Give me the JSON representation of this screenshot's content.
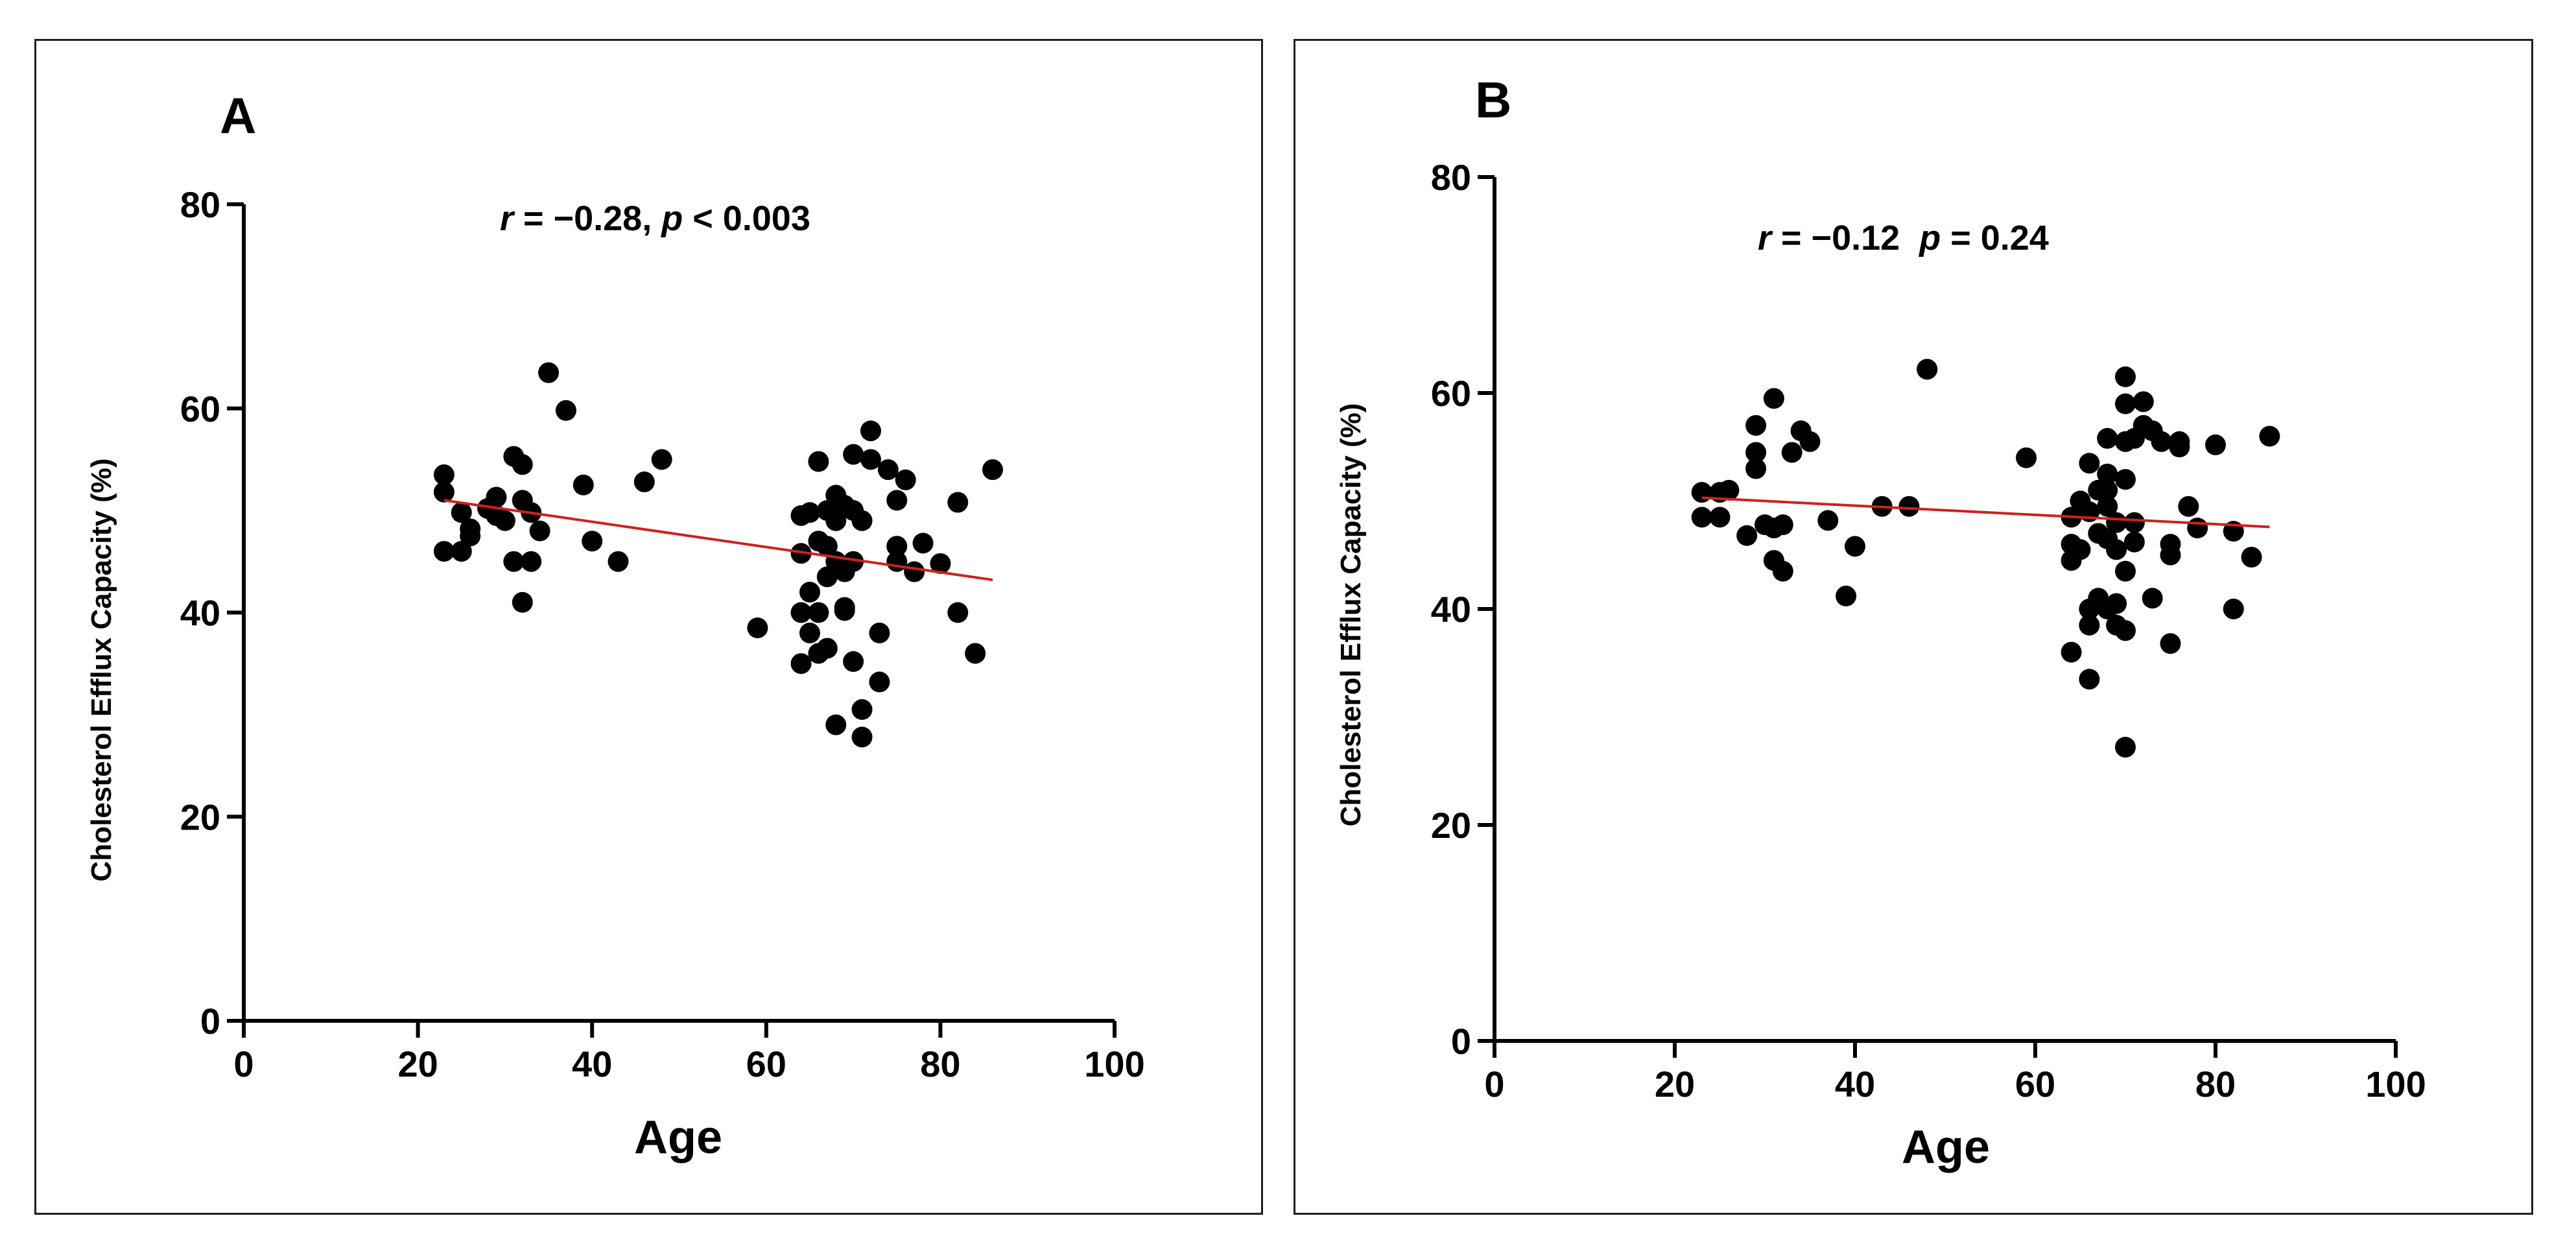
{
  "colors": {
    "points": "#000000",
    "fit_line": "#cc2222",
    "axis": "#000000",
    "frame": "#1f1f1f"
  },
  "chart_data": [
    {
      "type": "scatter",
      "panel": "A",
      "annotation": {
        "r_symbol": "r",
        "r_text": " = −0.28, ",
        "p_symbol": "p",
        "p_text": " < 0.003"
      },
      "xlabel": "Age",
      "ylabel": "Cholesterol Efflux Capacity (%)",
      "xlim": [
        0,
        100
      ],
      "ylim": [
        0,
        80
      ],
      "xticks": [
        0,
        20,
        40,
        60,
        80,
        100
      ],
      "yticks": [
        0,
        20,
        40,
        60,
        80
      ],
      "trendline": {
        "x": [
          23,
          86
        ],
        "y": [
          51.0,
          43.2
        ]
      },
      "points": [
        [
          23,
          53.5
        ],
        [
          23,
          51.8
        ],
        [
          23,
          46.0
        ],
        [
          25,
          49.8
        ],
        [
          25,
          46.0
        ],
        [
          26,
          47.5
        ],
        [
          26,
          48.2
        ],
        [
          28,
          50.2
        ],
        [
          29,
          51.3
        ],
        [
          29,
          49.5
        ],
        [
          30,
          49.0
        ],
        [
          31,
          55.3
        ],
        [
          31,
          45.0
        ],
        [
          32,
          54.5
        ],
        [
          32,
          51.0
        ],
        [
          32,
          41.0
        ],
        [
          33,
          45.0
        ],
        [
          33,
          49.8
        ],
        [
          34,
          48.0
        ],
        [
          35,
          63.5
        ],
        [
          37,
          59.8
        ],
        [
          39,
          52.5
        ],
        [
          40,
          47.0
        ],
        [
          43,
          45.0
        ],
        [
          46,
          52.8
        ],
        [
          48,
          55.0
        ],
        [
          59,
          38.5
        ],
        [
          64,
          49.5
        ],
        [
          64,
          45.8
        ],
        [
          64,
          40.0
        ],
        [
          64,
          35.0
        ],
        [
          65,
          49.8
        ],
        [
          65,
          42.0
        ],
        [
          65,
          38.0
        ],
        [
          66,
          54.8
        ],
        [
          66,
          47.0
        ],
        [
          66,
          40.0
        ],
        [
          66,
          36.0
        ],
        [
          67,
          50.0
        ],
        [
          67,
          46.5
        ],
        [
          67,
          43.5
        ],
        [
          67,
          36.5
        ],
        [
          68,
          51.5
        ],
        [
          68,
          49.0
        ],
        [
          68,
          45.0
        ],
        [
          68,
          29.0
        ],
        [
          69,
          50.5
        ],
        [
          69,
          44.0
        ],
        [
          69,
          40.2
        ],
        [
          69,
          40.5
        ],
        [
          70,
          55.5
        ],
        [
          70,
          50.0
        ],
        [
          70,
          45.0
        ],
        [
          70,
          35.2
        ],
        [
          71,
          49.0
        ],
        [
          71,
          30.5
        ],
        [
          71,
          27.8
        ],
        [
          72,
          57.8
        ],
        [
          72,
          55.0
        ],
        [
          73,
          38.0
        ],
        [
          73,
          33.2
        ],
        [
          74,
          54.0
        ],
        [
          75,
          51.0
        ],
        [
          75,
          46.5
        ],
        [
          75,
          45.0
        ],
        [
          76,
          53.0
        ],
        [
          77,
          44.0
        ],
        [
          78,
          46.8
        ],
        [
          80,
          44.8
        ],
        [
          82,
          50.8
        ],
        [
          82,
          40.0
        ],
        [
          84,
          36.0
        ],
        [
          86,
          54.0
        ]
      ]
    },
    {
      "type": "scatter",
      "panel": "B",
      "annotation": {
        "r_symbol": "r",
        "r_text": " = −0.12  ",
        "p_symbol": "p",
        "p_text": " = 0.24"
      },
      "xlabel": "Age",
      "ylabel": "Cholesterol Efflux Capacity (%)",
      "xlim": [
        0,
        100
      ],
      "ylim": [
        0,
        80
      ],
      "xticks": [
        0,
        20,
        40,
        60,
        80,
        100
      ],
      "yticks": [
        0,
        20,
        40,
        60,
        80
      ],
      "trendline": {
        "x": [
          23,
          86
        ],
        "y": [
          50.3,
          47.6
        ]
      },
      "points": [
        [
          23,
          50.8
        ],
        [
          23,
          48.5
        ],
        [
          25,
          50.8
        ],
        [
          25,
          48.5
        ],
        [
          26,
          51.0
        ],
        [
          28,
          46.8
        ],
        [
          29,
          57.0
        ],
        [
          29,
          54.5
        ],
        [
          29,
          53.0
        ],
        [
          30,
          47.8
        ],
        [
          31,
          59.5
        ],
        [
          31,
          47.5
        ],
        [
          31,
          44.5
        ],
        [
          32,
          47.8
        ],
        [
          32,
          43.5
        ],
        [
          33,
          54.5
        ],
        [
          34,
          56.5
        ],
        [
          35,
          55.5
        ],
        [
          37,
          48.2
        ],
        [
          39,
          41.2
        ],
        [
          40,
          45.8
        ],
        [
          43,
          49.5
        ],
        [
          46,
          49.5
        ],
        [
          48,
          62.2
        ],
        [
          48,
          62.2
        ],
        [
          59,
          54.0
        ],
        [
          64,
          48.5
        ],
        [
          64,
          46.0
        ],
        [
          64,
          44.5
        ],
        [
          64,
          36.0
        ],
        [
          65,
          50.0
        ],
        [
          65,
          45.5
        ],
        [
          66,
          53.5
        ],
        [
          66,
          49.0
        ],
        [
          66,
          40.0
        ],
        [
          66,
          38.5
        ],
        [
          66,
          33.5
        ],
        [
          67,
          51.0
        ],
        [
          67,
          47.0
        ],
        [
          67,
          41.0
        ],
        [
          68,
          55.8
        ],
        [
          68,
          52.5
        ],
        [
          68,
          51.0
        ],
        [
          68,
          49.5
        ],
        [
          68,
          46.5
        ],
        [
          68,
          40.0
        ],
        [
          69,
          48.0
        ],
        [
          69,
          45.5
        ],
        [
          69,
          40.5
        ],
        [
          69,
          38.5
        ],
        [
          70,
          61.5
        ],
        [
          70,
          59.0
        ],
        [
          70,
          55.5
        ],
        [
          70,
          52.0
        ],
        [
          70,
          43.5
        ],
        [
          70,
          38.0
        ],
        [
          70,
          27.2
        ],
        [
          71,
          55.8
        ],
        [
          71,
          48.0
        ],
        [
          71,
          46.2
        ],
        [
          72,
          59.2
        ],
        [
          72,
          57.0
        ],
        [
          73,
          56.5
        ],
        [
          73,
          41.0
        ],
        [
          74,
          55.5
        ],
        [
          75,
          46.0
        ],
        [
          75,
          45.0
        ],
        [
          75,
          36.8
        ],
        [
          76,
          55.5
        ],
        [
          76,
          55.0
        ],
        [
          77,
          49.5
        ],
        [
          78,
          47.5
        ],
        [
          80,
          55.2
        ],
        [
          82,
          47.2
        ],
        [
          82,
          40.0
        ],
        [
          84,
          44.8
        ],
        [
          86,
          56.0
        ]
      ]
    }
  ]
}
